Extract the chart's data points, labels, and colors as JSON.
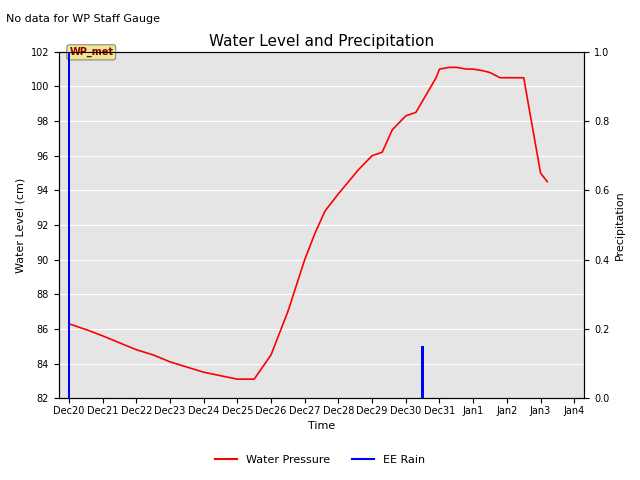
{
  "title": "Water Level and Precipitation",
  "subtitle": "No data for WP Staff Gauge",
  "ylabel_left": "Water Level (cm)",
  "ylabel_right": "Precipitation",
  "xlabel": "Time",
  "annotation_label": "WP_met",
  "ylim_left": [
    82,
    102
  ],
  "ylim_right": [
    0.0,
    1.0
  ],
  "xlim": [
    -0.3,
    15.3
  ],
  "background_color": "#e5e5e5",
  "water_pressure": {
    "times": [
      0,
      0.3,
      0.6,
      1.0,
      1.5,
      2.0,
      2.5,
      3.0,
      3.5,
      4.0,
      4.5,
      5.0,
      5.2,
      5.5,
      6.0,
      6.5,
      7.0,
      7.3,
      7.6,
      8.0,
      8.3,
      8.6,
      9.0,
      9.3,
      9.6,
      10.0,
      10.3,
      10.6,
      10.9,
      11.0,
      11.3,
      11.5,
      11.8,
      12.0,
      12.3,
      12.5,
      12.8,
      13.0,
      13.5,
      14.0,
      14.2
    ],
    "values": [
      86.3,
      86.1,
      85.9,
      85.6,
      85.2,
      84.8,
      84.5,
      84.1,
      83.8,
      83.5,
      83.3,
      83.1,
      83.1,
      83.1,
      84.5,
      87.0,
      90.0,
      91.5,
      92.8,
      93.8,
      94.5,
      95.2,
      96.0,
      96.2,
      97.5,
      98.3,
      98.5,
      99.5,
      100.5,
      101.0,
      101.1,
      101.1,
      101.0,
      101.0,
      100.9,
      100.8,
      100.5,
      100.5,
      100.5,
      95.0,
      94.5
    ],
    "color": "red",
    "linewidth": 1.2
  },
  "ee_rain_bars": [
    {
      "day": 0,
      "height": 1.0
    },
    {
      "day": 10.5,
      "height": 0.15
    }
  ],
  "rain_color": "blue",
  "rain_linewidth": 2.5,
  "xtick_labels": [
    "Dec 20",
    "Dec 21",
    "Dec 22",
    "Dec 23",
    "Dec 24",
    "Dec 25",
    "Dec 26",
    "Dec 27",
    "Dec 28",
    "Dec 29",
    "Dec 30",
    "Dec 31",
    "Jan 1",
    "Jan 2",
    "Jan 3",
    "Jan 4"
  ],
  "xtick_positions": [
    0,
    1,
    2,
    3,
    4,
    5,
    6,
    7,
    8,
    9,
    10,
    11,
    12,
    13,
    14,
    15
  ],
  "yticks_left": [
    82,
    84,
    86,
    88,
    90,
    92,
    94,
    96,
    98,
    100,
    102
  ],
  "yticks_right": [
    0.0,
    0.2,
    0.4,
    0.6,
    0.8,
    1.0
  ],
  "legend_items": [
    {
      "label": "Water Pressure",
      "color": "red"
    },
    {
      "label": "EE Rain",
      "color": "blue"
    }
  ],
  "title_fontsize": 11,
  "subtitle_fontsize": 8,
  "axis_label_fontsize": 8,
  "tick_fontsize": 7,
  "legend_fontsize": 8
}
